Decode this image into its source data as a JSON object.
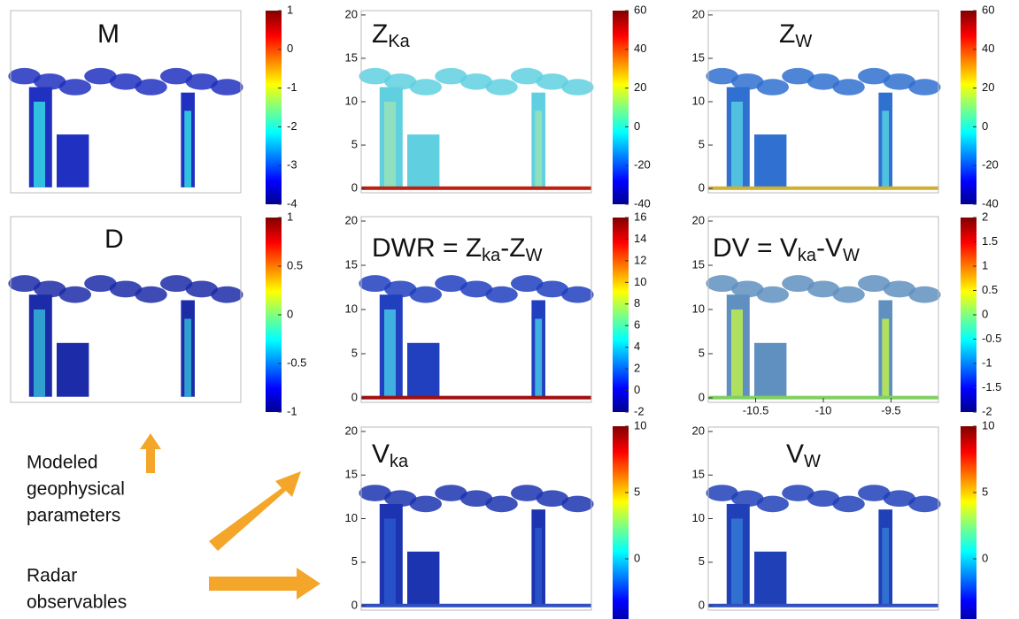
{
  "panels": [
    {
      "title_parts": [
        {
          "text": "M"
        }
      ],
      "colorbar": {
        "lim": [
          -4,
          1
        ],
        "ticks": [
          1,
          0,
          -1,
          -2,
          -3,
          -4
        ]
      }
    },
    {
      "title_parts": [
        {
          "text": "Z"
        },
        {
          "text": "Ka",
          "sub": true
        }
      ],
      "ylim": [
        -0.5,
        20.5
      ],
      "yticks": [
        0,
        5,
        10,
        15,
        20
      ],
      "colorbar": {
        "lim": [
          -40,
          60
        ],
        "ticks": [
          60,
          40,
          20,
          0,
          -20,
          -40
        ]
      }
    },
    {
      "title_parts": [
        {
          "text": "Z"
        },
        {
          "text": "W",
          "sub": true
        }
      ],
      "ylim": [
        -0.5,
        20.5
      ],
      "yticks": [
        0,
        5,
        10,
        15,
        20
      ],
      "colorbar": {
        "lim": [
          -40,
          60
        ],
        "ticks": [
          60,
          40,
          20,
          0,
          -20,
          -40
        ]
      }
    },
    {
      "title_parts": [
        {
          "text": "D"
        }
      ],
      "colorbar": {
        "lim": [
          -1,
          1
        ],
        "ticks": [
          1,
          0.5,
          0,
          -0.5,
          -1
        ]
      }
    },
    {
      "title_parts": [
        {
          "text": "DWR = Z"
        },
        {
          "text": "ka",
          "sub": true
        },
        {
          "text": "-Z"
        },
        {
          "text": "W",
          "sub": true
        }
      ],
      "ylim": [
        -0.5,
        20.5
      ],
      "yticks": [
        0,
        5,
        10,
        15,
        20
      ],
      "colorbar": {
        "lim": [
          -2,
          16
        ],
        "ticks": [
          16,
          14,
          12,
          10,
          8,
          6,
          4,
          2,
          0,
          -2
        ]
      }
    },
    {
      "title_parts": [
        {
          "text": "DV = V"
        },
        {
          "text": "ka",
          "sub": true
        },
        {
          "text": "-V"
        },
        {
          "text": "W",
          "sub": true
        }
      ],
      "ylim": [
        -0.5,
        20.5
      ],
      "yticks": [
        0,
        5,
        10,
        15,
        20
      ],
      "xlim": [
        -10.85,
        -9.15
      ],
      "xticks": [
        -10.5,
        -10,
        -9.5
      ],
      "colorbar": {
        "lim": [
          -2,
          2
        ],
        "ticks": [
          2,
          1.5,
          1,
          0.5,
          0,
          -0.5,
          -1,
          -1.5,
          -2
        ]
      }
    },
    null,
    {
      "title_parts": [
        {
          "text": "V"
        },
        {
          "text": "ka",
          "sub": true
        }
      ],
      "ylim": [
        -0.5,
        20.5
      ],
      "yticks": [
        0,
        5,
        10,
        15,
        20
      ],
      "colorbar": {
        "lim": [
          -5,
          10
        ],
        "ticks": [
          10,
          5,
          0
        ]
      }
    },
    {
      "title_parts": [
        {
          "text": "V"
        },
        {
          "text": "W",
          "sub": true
        }
      ],
      "ylim": [
        -0.5,
        20.5
      ],
      "yticks": [
        0,
        5,
        10,
        15,
        20
      ],
      "colorbar": {
        "lim": [
          -5,
          10
        ],
        "ticks": [
          10,
          5,
          0
        ]
      }
    }
  ],
  "annotations": {
    "modeled": [
      "Modeled",
      "geophysical",
      "parameters"
    ],
    "radar": [
      "Radar",
      "observables"
    ]
  }
}
